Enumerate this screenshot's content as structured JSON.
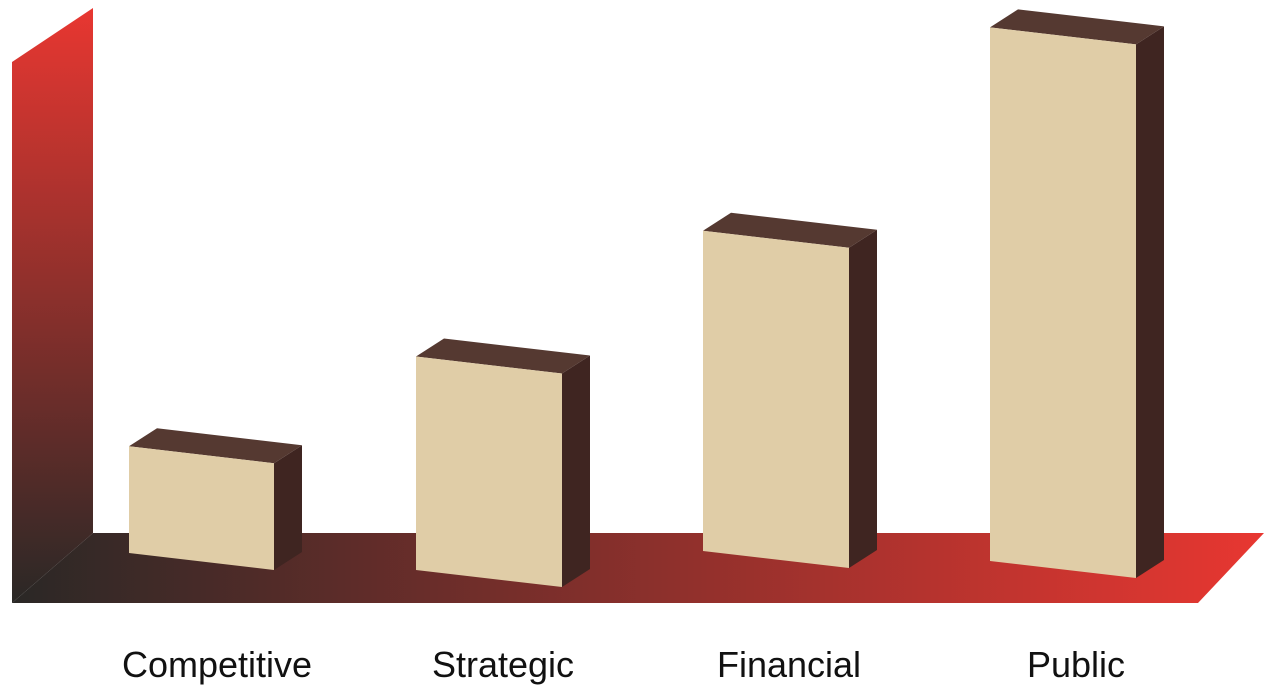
{
  "chart_data": {
    "type": "bar",
    "style": "3d-columns",
    "categories": [
      "Competitive",
      "Strategic",
      "Financial",
      "Public"
    ],
    "values": [
      1,
      2,
      3,
      5
    ],
    "ylim": [
      0,
      5.2
    ],
    "grid": false,
    "legend": "none",
    "title": "",
    "xlabel": "",
    "ylabel": ""
  },
  "colors": {
    "bar_front": "#e0cda7",
    "bar_top": "#553931",
    "bar_side": "#3f2521",
    "axis_gradient_start": "#2a2826",
    "axis_gradient_end": "#e83731",
    "label": "#111111"
  }
}
